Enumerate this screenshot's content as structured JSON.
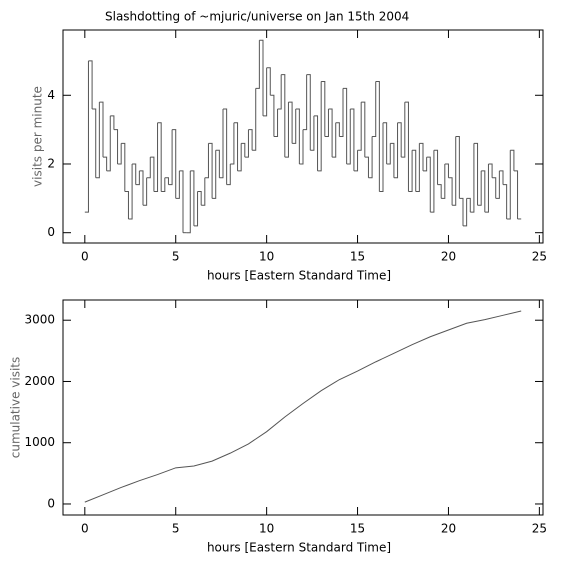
{
  "chart_data": [
    {
      "type": "step",
      "title": "Slashdotting of ~mjuric/universe on Jan 15th 2004",
      "x_label": "hours [Eastern Standard Time]",
      "y_label": "visits per minute",
      "color": "#555555",
      "xlim": [
        -1.2,
        25.2
      ],
      "xticks": [
        0,
        5,
        10,
        15,
        20,
        25
      ],
      "ylim": [
        -0.3,
        5.9
      ],
      "yticks": [
        0,
        2,
        4
      ],
      "x": [
        0,
        0.2,
        0.4,
        0.6,
        0.8,
        1,
        1.2,
        1.4,
        1.6,
        1.8,
        2,
        2.2,
        2.4,
        2.6,
        2.8,
        3,
        3.2,
        3.4,
        3.6,
        3.8,
        4,
        4.2,
        4.4,
        4.6,
        4.8,
        5,
        5.2,
        5.4,
        5.6,
        5.8,
        6,
        6.2,
        6.4,
        6.6,
        6.8,
        7,
        7.2,
        7.4,
        7.6,
        7.8,
        8,
        8.2,
        8.4,
        8.6,
        8.8,
        9,
        9.2,
        9.4,
        9.6,
        9.8,
        10,
        10.2,
        10.4,
        10.6,
        10.8,
        11,
        11.2,
        11.4,
        11.6,
        11.8,
        12,
        12.2,
        12.4,
        12.6,
        12.8,
        13,
        13.2,
        13.4,
        13.6,
        13.8,
        14,
        14.2,
        14.4,
        14.6,
        14.8,
        15,
        15.2,
        15.4,
        15.6,
        15.8,
        16,
        16.2,
        16.4,
        16.6,
        16.8,
        17,
        17.2,
        17.4,
        17.6,
        17.8,
        18,
        18.2,
        18.4,
        18.6,
        18.8,
        19,
        19.2,
        19.4,
        19.6,
        19.8,
        20,
        20.2,
        20.4,
        20.6,
        20.8,
        21,
        21.2,
        21.4,
        21.6,
        21.8,
        22,
        22.2,
        22.4,
        22.6,
        22.8,
        23,
        23.2,
        23.4,
        23.6,
        23.8
      ],
      "values": [
        0.6,
        5.0,
        3.6,
        1.6,
        3.8,
        2.2,
        1.8,
        3.4,
        3.0,
        2.0,
        2.6,
        1.2,
        0.4,
        2.0,
        1.4,
        1.8,
        0.8,
        1.6,
        2.2,
        1.2,
        3.2,
        1.2,
        1.6,
        1.4,
        3.0,
        1.0,
        1.8,
        0.0,
        0.0,
        1.8,
        0.2,
        1.2,
        0.8,
        1.6,
        2.6,
        1.0,
        2.4,
        1.6,
        3.6,
        1.4,
        2.0,
        3.2,
        1.8,
        2.6,
        2.2,
        3.0,
        2.4,
        4.2,
        5.6,
        3.4,
        4.8,
        4.0,
        2.8,
        3.6,
        4.6,
        2.2,
        3.8,
        2.6,
        3.6,
        2.0,
        3.0,
        4.6,
        2.4,
        3.4,
        1.8,
        4.4,
        2.8,
        3.6,
        2.2,
        3.2,
        2.8,
        4.2,
        2.0,
        3.6,
        1.8,
        2.4,
        3.8,
        2.2,
        1.6,
        2.8,
        4.4,
        1.2,
        3.2,
        2.0,
        2.6,
        1.6,
        3.2,
        2.2,
        3.8,
        1.2,
        2.4,
        1.2,
        2.6,
        1.8,
        2.2,
        0.6,
        2.4,
        1.4,
        1.0,
        2.0,
        1.6,
        0.8,
        2.8,
        1.0,
        0.2,
        1.0,
        0.6,
        2.6,
        0.8,
        1.8,
        0.6,
        2.0,
        1.6,
        1.0,
        1.8,
        1.4,
        0.4,
        2.4,
        1.8,
        0.4
      ]
    },
    {
      "type": "line",
      "x_label": "hours [Eastern Standard Time]",
      "y_label": "cumulative visits",
      "color": "#555555",
      "xlim": [
        -1.2,
        25.2
      ],
      "xticks": [
        0,
        5,
        10,
        15,
        20,
        25
      ],
      "ylim": [
        -180,
        3330
      ],
      "yticks": [
        0,
        1000,
        2000,
        3000
      ],
      "x": [
        0,
        1,
        2,
        3,
        4,
        5,
        6,
        7,
        8,
        9,
        10,
        11,
        12,
        13,
        14,
        15,
        16,
        17,
        18,
        19,
        20,
        21,
        22,
        23,
        24
      ],
      "values": [
        30,
        150,
        270,
        380,
        480,
        590,
        620,
        700,
        830,
        980,
        1180,
        1420,
        1640,
        1850,
        2030,
        2170,
        2320,
        2460,
        2600,
        2730,
        2840,
        2950,
        3010,
        3080,
        3150
      ]
    }
  ]
}
